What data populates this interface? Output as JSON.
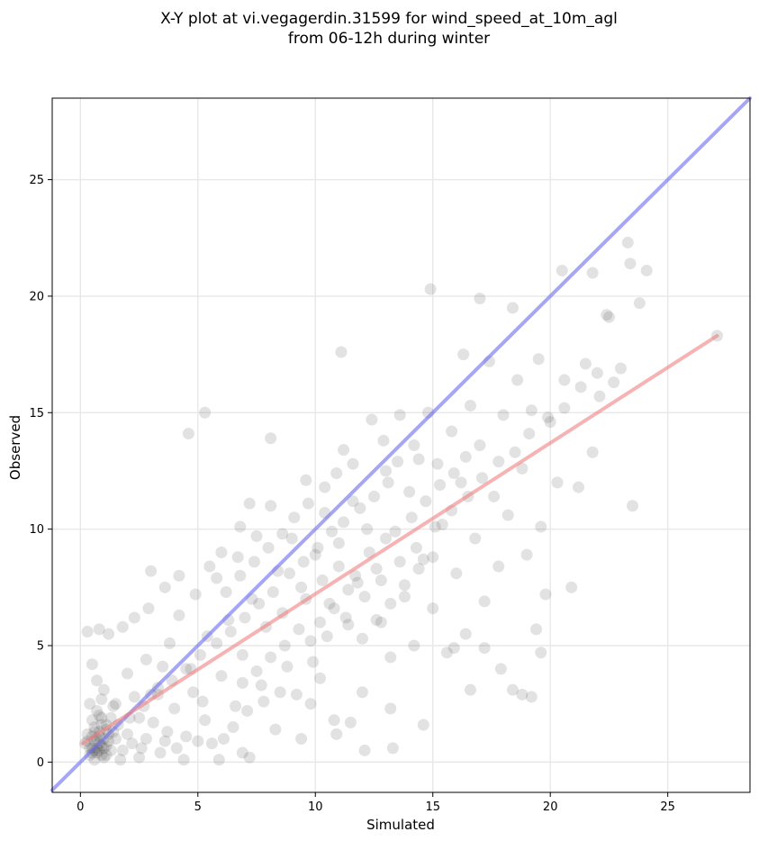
{
  "chart_data": {
    "type": "scatter",
    "title": [
      "X-Y plot at vi.vegagerdin.31599 for wind_speed_at_10m_agl",
      "from 06-12h during winter"
    ],
    "xlabel": "Simulated",
    "ylabel": "Observed",
    "xlim": [
      -1.2,
      28.5
    ],
    "ylim": [
      -1.3,
      28.5
    ],
    "xticks": [
      0,
      5,
      10,
      15,
      20,
      25
    ],
    "yticks": [
      0,
      5,
      10,
      15,
      20,
      25
    ],
    "grid": true,
    "point_color": "#333333",
    "reference_lines": [
      {
        "kind": "identity",
        "color": "#6b6bf0",
        "x": [
          -1.2,
          28.5
        ],
        "y": [
          -1.2,
          28.5
        ]
      },
      {
        "kind": "fit",
        "color": "#f08080",
        "x": [
          0.1,
          27.1
        ],
        "y": [
          0.8,
          18.3
        ]
      }
    ],
    "points": [
      [
        0.4,
        0.3
      ],
      [
        0.5,
        0.6
      ],
      [
        0.6,
        0.9
      ],
      [
        0.7,
        0.4
      ],
      [
        0.8,
        1.1
      ],
      [
        0.9,
        0.7
      ],
      [
        1.0,
        0.2
      ],
      [
        1.1,
        1.4
      ],
      [
        0.5,
        1.8
      ],
      [
        0.3,
        1.2
      ],
      [
        0.7,
        2.2
      ],
      [
        1.2,
        0.9
      ],
      [
        0.9,
        2.7
      ],
      [
        0.6,
        0.1
      ],
      [
        1.3,
        1.9
      ],
      [
        0.8,
        0.5
      ],
      [
        1.0,
        3.1
      ],
      [
        0.4,
        2.5
      ],
      [
        1.5,
        1.0
      ],
      [
        0.2,
        0.8
      ],
      [
        0.6,
        1.5
      ],
      [
        1.1,
        0.3
      ],
      [
        0.9,
        1.6
      ],
      [
        0.7,
        3.5
      ],
      [
        1.4,
        2.4
      ],
      [
        0.5,
        4.2
      ],
      [
        1.6,
        1.6
      ],
      [
        0.3,
        5.6
      ],
      [
        0.8,
        5.7
      ],
      [
        1.2,
        5.5
      ],
      [
        2.0,
        1.2
      ],
      [
        2.3,
        2.8
      ],
      [
        2.6,
        0.6
      ],
      [
        2.8,
        4.4
      ],
      [
        3.1,
        1.7
      ],
      [
        3.3,
        3.2
      ],
      [
        3.6,
        0.9
      ],
      [
        3.8,
        5.1
      ],
      [
        4.0,
        2.3
      ],
      [
        4.2,
        6.3
      ],
      [
        4.5,
        1.1
      ],
      [
        4.7,
        4.0
      ],
      [
        4.9,
        7.2
      ],
      [
        5.2,
        2.6
      ],
      [
        5.4,
        5.4
      ],
      [
        5.6,
        0.8
      ],
      [
        5.8,
        7.9
      ],
      [
        6.0,
        3.7
      ],
      [
        6.3,
        6.1
      ],
      [
        6.5,
        1.5
      ],
      [
        6.7,
        8.8
      ],
      [
        6.9,
        4.6
      ],
      [
        7.1,
        2.2
      ],
      [
        7.3,
        7.0
      ],
      [
        7.5,
        9.7
      ],
      [
        7.7,
        3.3
      ],
      [
        7.9,
        5.8
      ],
      [
        8.1,
        11.0
      ],
      [
        8.3,
        1.4
      ],
      [
        8.4,
        8.2
      ],
      [
        8.6,
        6.4
      ],
      [
        8.8,
        4.1
      ],
      [
        9.0,
        9.6
      ],
      [
        9.2,
        2.9
      ],
      [
        9.4,
        7.5
      ],
      [
        9.6,
        12.1
      ],
      [
        9.8,
        5.2
      ],
      [
        10.0,
        8.9
      ],
      [
        10.2,
        3.6
      ],
      [
        10.4,
        10.7
      ],
      [
        10.6,
        6.8
      ],
      [
        10.8,
        1.8
      ],
      [
        11.0,
        9.4
      ],
      [
        11.2,
        13.4
      ],
      [
        11.4,
        5.9
      ],
      [
        11.6,
        11.2
      ],
      [
        11.8,
        7.7
      ],
      [
        12.0,
        3.0
      ],
      [
        12.2,
        10.0
      ],
      [
        12.4,
        14.7
      ],
      [
        12.6,
        8.3
      ],
      [
        12.8,
        6.0
      ],
      [
        13.0,
        12.5
      ],
      [
        13.2,
        2.3
      ],
      [
        13.4,
        9.9
      ],
      [
        13.6,
        14.9
      ],
      [
        13.8,
        7.1
      ],
      [
        14.0,
        11.6
      ],
      [
        14.2,
        5.0
      ],
      [
        14.4,
        13.0
      ],
      [
        14.6,
        8.7
      ],
      [
        14.8,
        15.0
      ],
      [
        15.0,
        6.6
      ],
      [
        15.2,
        12.8
      ],
      [
        15.4,
        10.2
      ],
      [
        15.6,
        4.7
      ],
      [
        15.8,
        14.2
      ],
      [
        16.0,
        8.1
      ],
      [
        16.2,
        12.0
      ],
      [
        16.4,
        5.5
      ],
      [
        16.6,
        15.3
      ],
      [
        16.8,
        9.6
      ],
      [
        17.0,
        13.6
      ],
      [
        17.2,
        6.9
      ],
      [
        17.4,
        17.2
      ],
      [
        17.6,
        11.4
      ],
      [
        17.8,
        8.4
      ],
      [
        18.0,
        14.9
      ],
      [
        18.2,
        10.6
      ],
      [
        18.4,
        3.1
      ],
      [
        18.6,
        16.4
      ],
      [
        18.8,
        12.6
      ],
      [
        19.0,
        8.9
      ],
      [
        19.2,
        15.1
      ],
      [
        19.4,
        5.7
      ],
      [
        19.6,
        10.1
      ],
      [
        19.8,
        7.2
      ],
      [
        20.0,
        14.6
      ],
      [
        20.3,
        12.0
      ],
      [
        20.6,
        16.4
      ],
      [
        20.9,
        7.5
      ],
      [
        21.2,
        11.8
      ],
      [
        21.5,
        17.1
      ],
      [
        21.8,
        13.3
      ],
      [
        22.1,
        15.7
      ],
      [
        22.4,
        19.2
      ],
      [
        22.7,
        16.3
      ],
      [
        23.0,
        16.9
      ],
      [
        23.3,
        22.3
      ],
      [
        23.5,
        11.0
      ],
      [
        23.8,
        19.7
      ],
      [
        24.1,
        21.1
      ],
      [
        27.1,
        18.3
      ],
      [
        4.6,
        14.1
      ],
      [
        5.3,
        15.0
      ],
      [
        8.1,
        13.9
      ],
      [
        11.1,
        17.6
      ],
      [
        14.9,
        20.3
      ],
      [
        16.3,
        17.5
      ],
      [
        17.0,
        19.9
      ],
      [
        18.4,
        19.5
      ],
      [
        19.5,
        17.3
      ],
      [
        20.5,
        21.1
      ],
      [
        21.8,
        21.0
      ],
      [
        22.5,
        19.1
      ],
      [
        23.4,
        21.4
      ],
      [
        12.1,
        0.5
      ],
      [
        13.3,
        0.6
      ],
      [
        14.6,
        1.6
      ],
      [
        10.9,
        1.2
      ],
      [
        9.4,
        1.0
      ],
      [
        11.5,
        1.7
      ],
      [
        13.2,
        4.5
      ],
      [
        15.9,
        4.9
      ],
      [
        17.2,
        4.9
      ],
      [
        18.8,
        2.9
      ],
      [
        19.2,
        2.8
      ],
      [
        19.6,
        4.7
      ],
      [
        16.6,
        3.1
      ],
      [
        17.9,
        4.0
      ],
      [
        3.0,
        8.2
      ],
      [
        3.6,
        7.5
      ],
      [
        4.2,
        8.0
      ],
      [
        5.5,
        8.4
      ],
      [
        6.0,
        9.0
      ],
      [
        6.8,
        10.1
      ],
      [
        7.2,
        11.1
      ],
      [
        2.3,
        6.2
      ],
      [
        1.8,
        5.8
      ],
      [
        2.9,
        6.6
      ],
      [
        1.5,
        2.5
      ],
      [
        2.0,
        3.8
      ],
      [
        2.5,
        1.9
      ],
      [
        3.0,
        2.9
      ],
      [
        3.5,
        4.1
      ],
      [
        1.8,
        0.5
      ],
      [
        2.2,
        0.8
      ],
      [
        3.4,
        0.4
      ],
      [
        4.1,
        0.6
      ],
      [
        5.0,
        0.9
      ],
      [
        6.1,
        1.0
      ],
      [
        6.9,
        0.4
      ],
      [
        7.2,
        0.2
      ],
      [
        5.9,
        0.1
      ],
      [
        4.4,
        0.1
      ],
      [
        2.5,
        0.2
      ],
      [
        1.7,
        0.1
      ],
      [
        9.9,
        4.3
      ],
      [
        10.5,
        5.4
      ],
      [
        11.3,
        6.2
      ],
      [
        12.1,
        7.1
      ],
      [
        12.8,
        7.8
      ],
      [
        13.6,
        8.6
      ],
      [
        14.3,
        9.2
      ],
      [
        15.1,
        10.1
      ],
      [
        15.8,
        10.8
      ],
      [
        16.5,
        11.4
      ],
      [
        17.1,
        12.2
      ],
      [
        17.8,
        12.9
      ],
      [
        18.5,
        13.3
      ],
      [
        19.1,
        14.1
      ],
      [
        19.9,
        14.8
      ],
      [
        20.6,
        15.2
      ],
      [
        21.3,
        16.1
      ],
      [
        22.0,
        16.7
      ],
      [
        8.9,
        8.1
      ],
      [
        9.5,
        8.6
      ],
      [
        10.1,
        9.2
      ],
      [
        10.7,
        9.9
      ],
      [
        11.2,
        10.3
      ],
      [
        11.9,
        10.9
      ],
      [
        12.5,
        11.4
      ],
      [
        13.1,
        12.0
      ],
      [
        8.2,
        7.3
      ],
      [
        7.6,
        6.8
      ],
      [
        7.0,
        6.2
      ],
      [
        6.4,
        5.6
      ],
      [
        5.8,
        5.1
      ],
      [
        5.1,
        4.6
      ],
      [
        4.5,
        4.0
      ],
      [
        3.9,
        3.5
      ],
      [
        3.3,
        2.9
      ],
      [
        2.7,
        2.4
      ],
      [
        2.1,
        1.9
      ],
      [
        9.6,
        7.0
      ],
      [
        10.3,
        7.8
      ],
      [
        11.0,
        8.4
      ],
      [
        11.7,
        8.0
      ],
      [
        12.3,
        9.0
      ],
      [
        13.0,
        9.6
      ],
      [
        9.1,
        10.5
      ],
      [
        9.7,
        11.1
      ],
      [
        10.4,
        11.8
      ],
      [
        10.9,
        12.4
      ],
      [
        11.6,
        12.8
      ],
      [
        8.6,
        9.8
      ],
      [
        8.0,
        9.2
      ],
      [
        7.4,
        8.6
      ],
      [
        6.8,
        8.0
      ],
      [
        6.2,
        7.3
      ],
      [
        10.2,
        6.0
      ],
      [
        10.8,
        6.6
      ],
      [
        11.4,
        7.4
      ],
      [
        12.0,
        5.3
      ],
      [
        12.6,
        6.1
      ],
      [
        13.2,
        6.8
      ],
      [
        13.8,
        7.6
      ],
      [
        14.4,
        8.3
      ],
      [
        15.0,
        8.8
      ],
      [
        9.3,
        5.7
      ],
      [
        8.7,
        5.0
      ],
      [
        8.1,
        4.5
      ],
      [
        7.5,
        3.9
      ],
      [
        6.9,
        3.4
      ],
      [
        14.1,
        10.5
      ],
      [
        14.7,
        11.2
      ],
      [
        15.3,
        11.9
      ],
      [
        15.9,
        12.4
      ],
      [
        16.4,
        13.1
      ],
      [
        12.9,
        13.8
      ],
      [
        13.5,
        12.9
      ],
      [
        14.2,
        13.6
      ],
      [
        9.8,
        2.5
      ],
      [
        8.5,
        3.0
      ],
      [
        7.8,
        2.6
      ],
      [
        6.6,
        2.4
      ],
      [
        5.3,
        1.8
      ],
      [
        4.8,
        3.0
      ],
      [
        3.7,
        1.3
      ],
      [
        2.8,
        1.0
      ],
      [
        0.6,
        0.5
      ],
      [
        0.8,
        0.8
      ],
      [
        1.0,
        0.6
      ],
      [
        0.7,
        1.0
      ],
      [
        0.9,
        0.3
      ],
      [
        1.1,
        0.7
      ],
      [
        0.5,
        1.1
      ],
      [
        1.2,
        1.2
      ],
      [
        0.4,
        0.6
      ],
      [
        0.8,
        1.3
      ],
      [
        1.0,
        1.0
      ],
      [
        0.6,
        1.3
      ],
      [
        1.3,
        0.5
      ],
      [
        0.9,
        1.9
      ],
      [
        0.7,
        0.6
      ],
      [
        1.1,
        1.6
      ],
      [
        0.5,
        0.4
      ],
      [
        1.4,
        1.3
      ],
      [
        0.8,
        2.0
      ],
      [
        0.3,
        0.9
      ]
    ]
  }
}
